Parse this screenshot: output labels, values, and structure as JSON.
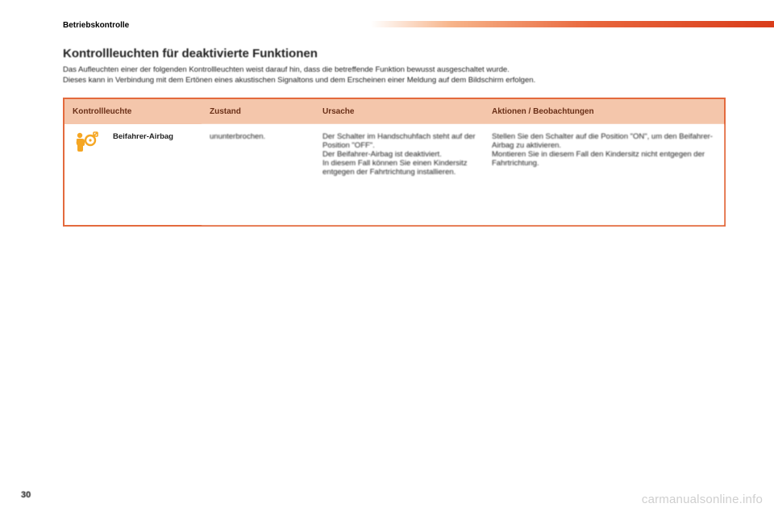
{
  "header": {
    "section_label": "Betriebskontrolle"
  },
  "page": {
    "title": "Kontrollleuchten für deaktivierte Funktionen",
    "intro_line1": "Das Aufleuchten einer der folgenden Kontrollleuchten weist darauf hin, dass die betreffende Funktion bewusst ausgeschaltet wurde.",
    "intro_line2": "Dieses kann in Verbindung mit dem Ertönen eines akustischen Signaltons und dem Erscheinen einer Meldung auf dem Bildschirm erfolgen.",
    "number": "30"
  },
  "table": {
    "headers": {
      "indicator": "Kontrollleuchte",
      "state": "Zustand",
      "cause": "Ursache",
      "actions": "Aktionen / Beobachtungen"
    },
    "row": {
      "name": "Beifahrer-Airbag",
      "state": "ununterbrochen.",
      "cause": "Der Schalter im Handschuhfach steht auf der Position \"OFF\".\nDer Beifahrer-Airbag ist deaktiviert.\nIn diesem Fall können Sie einen Kindersitz entgegen der Fahrtrichtung installieren.",
      "actions": "Stellen Sie den Schalter auf die Position \"ON\", um den Beifahrer-Airbag zu aktivieren.\nMontieren Sie in diesem Fall den Kindersitz nicht entgegen der Fahrtrichtung."
    }
  },
  "icons": {
    "airbag_color": "#f5a623"
  },
  "watermark": "carmanualsonline.info"
}
